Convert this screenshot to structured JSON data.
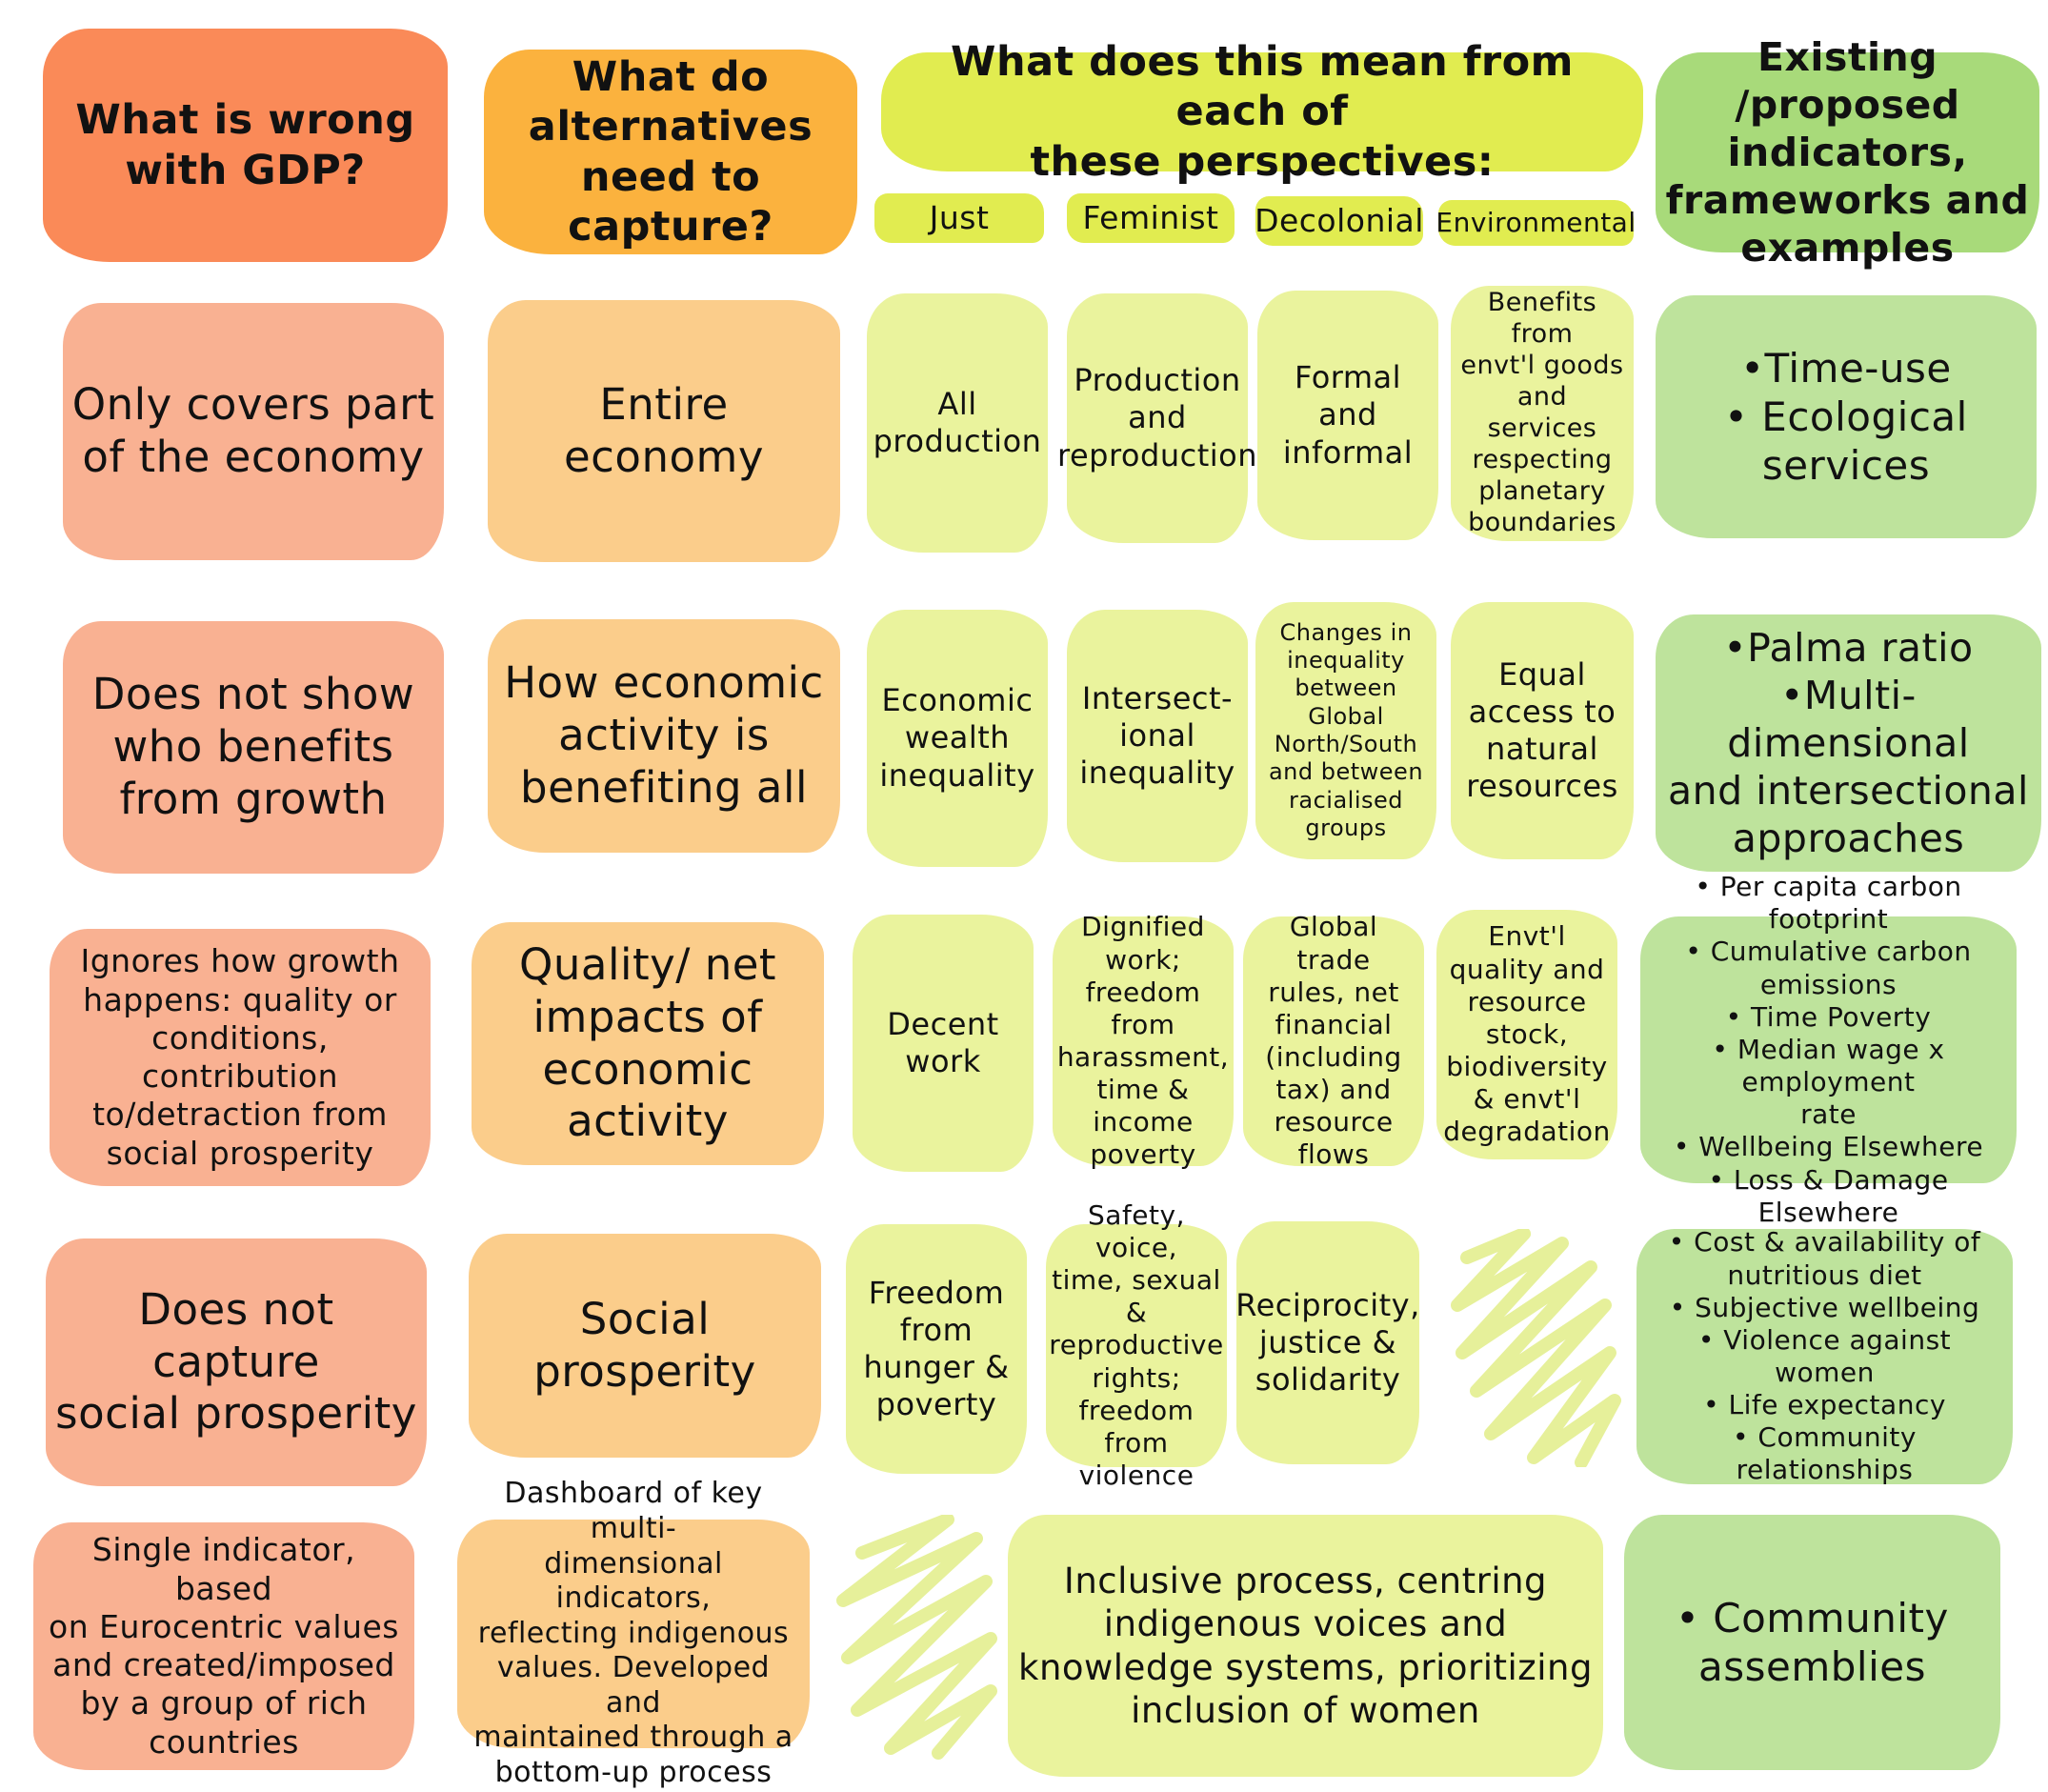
{
  "colors": {
    "gdp_header": "#fa8a58",
    "gdp_cell": "#f9b192",
    "capture_header": "#fbb23e",
    "capture_cell": "#fbcd8b",
    "perspective_header": "#e1ec50",
    "perspective_cell": "#eaf39d",
    "indicator_header": "#a8da7a",
    "indicator_cell": "#bee39c"
  },
  "headers": {
    "gdp": "What is wrong\nwith GDP?",
    "capture": "What do\nalternatives\nneed to capture?",
    "perspectives": "What does this mean from each of\nthese perspectives:",
    "indicators": "Existing /proposed\nindicators,\nframeworks and\nexamples",
    "sub": {
      "just": "Just",
      "feminist": "Feminist",
      "decolonial": "Decolonial",
      "environmental": "Environmental"
    }
  },
  "rows": [
    {
      "gdp": "Only covers part\nof the economy",
      "capture": "Entire economy",
      "just": "All\nproduction",
      "feminist": "Production\nand\nreproduction",
      "decolonial": "Formal and\ninformal",
      "environmental": "Benefits from\nenvt'l goods\nand services\nrespecting\nplanetary\nboundaries",
      "indicators": "•Time-use\n• Ecological\nservices"
    },
    {
      "gdp": "Does not show\nwho benefits\nfrom growth",
      "capture": "How economic\nactivity is\nbenefiting all",
      "just": "Economic\nwealth\ninequality",
      "feminist": "Intersect-\nional\ninequality",
      "decolonial": "Changes in\ninequality\nbetween Global\nNorth/South\nand between\nracialised\ngroups",
      "environmental": "Equal\naccess to\nnatural\nresources",
      "indicators": "•Palma ratio\n•Multi-dimensional\nand intersectional\napproaches"
    },
    {
      "gdp": "Ignores how growth\nhappens: quality or\nconditions,\ncontribution\nto/detraction from\nsocial prosperity",
      "capture": "Quality/ net\nimpacts of\neconomic\nactivity",
      "just": "Decent\nwork",
      "feminist": "Dignified\nwork;\nfreedom from\nharassment,\ntime &\nincome\npoverty",
      "decolonial": "Global trade\nrules, net\nfinancial\n(including\ntax) and\nresource\nflows",
      "environmental": "Envt'l\nquality and\nresource\nstock,\nbiodiversity\n& envt'l\ndegradation",
      "indicators": "• Per capita carbon footprint\n• Cumulative carbon emissions\n• Time Poverty\n• Median wage x employment\nrate\n• Wellbeing Elsewhere\n• Loss & Damage Elsewhere"
    },
    {
      "gdp": "Does not capture\nsocial prosperity",
      "capture": "Social\nprosperity",
      "just": "Freedom\nfrom\nhunger &\npoverty",
      "feminist": "Safety, voice,\ntime, sexual &\nreproductive\nrights;\nfreedom from\nviolence",
      "decolonial": "Reciprocity,\njustice &\nsolidarity",
      "indicators": "• Cost & availability of\nnutritious diet\n• Subjective wellbeing\n• Violence against women\n• Life expectancy\n• Community relationships"
    },
    {
      "gdp": "Single indicator, based\non Eurocentric values\nand created/imposed\nby a group of rich\ncountries",
      "capture": "Dashboard of key multi-\ndimensional indicators,\nreflecting indigenous\nvalues. Developed and\nmaintained through a\nbottom-up process",
      "merged": "Inclusive process, centring\nindigenous voices and\nknowledge systems, prioritizing\ninclusion of women",
      "indicators": "• Community\nassemblies"
    }
  ]
}
